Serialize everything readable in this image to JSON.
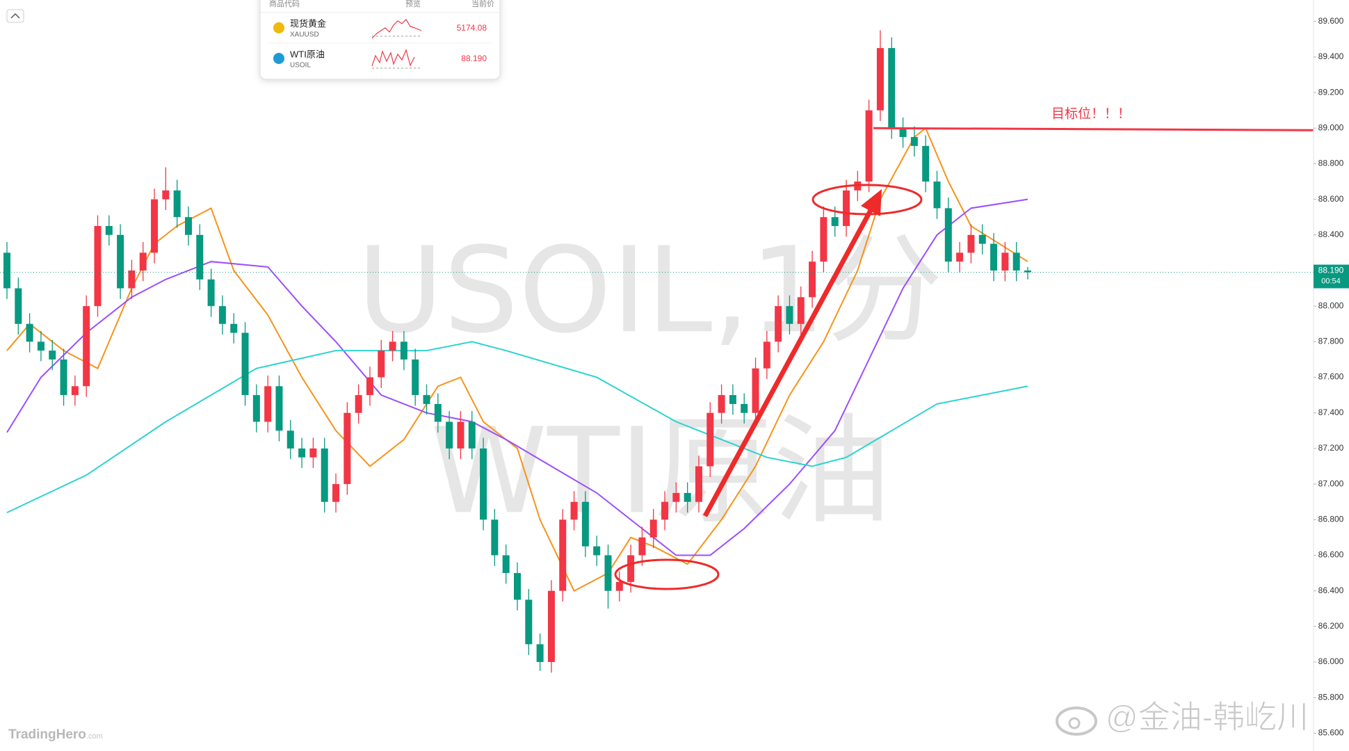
{
  "chart_data": {
    "type": "candlestick",
    "watermark": [
      "USOIL,1分",
      "WTI原油"
    ],
    "up_color": "#f23645",
    "down_color": "#089981",
    "open": [
      88.3,
      88.1,
      87.9,
      87.8,
      87.75,
      87.7,
      87.5,
      87.55,
      88.0,
      88.45,
      88.4,
      88.1,
      88.2,
      88.3,
      88.6,
      88.65,
      88.5,
      88.4,
      88.15,
      88.0,
      87.9,
      87.85,
      87.5,
      87.35,
      87.55,
      87.3,
      87.2,
      87.15,
      87.2,
      86.9,
      87.0,
      87.4,
      87.5,
      87.6,
      87.75,
      87.8,
      87.7,
      87.5,
      87.45,
      87.35,
      87.2,
      87.35,
      87.2,
      86.8,
      86.6,
      86.5,
      86.35,
      86.1,
      86.0,
      86.4,
      86.8,
      86.9,
      86.65,
      86.6,
      86.4,
      86.45,
      86.6,
      86.7,
      86.8,
      86.9,
      86.95,
      86.9,
      87.1,
      87.4,
      87.5,
      87.45,
      87.4,
      87.65,
      87.8,
      88.0,
      87.9,
      88.05,
      88.25,
      88.5,
      88.45,
      88.65,
      88.7,
      89.1,
      89.45,
      89.0,
      88.95,
      88.9,
      88.7,
      88.55,
      88.25,
      88.3,
      88.4,
      88.35,
      88.2,
      88.3,
      88.2
    ],
    "high": [
      88.36,
      88.16,
      87.96,
      87.86,
      87.81,
      87.76,
      87.61,
      88.06,
      88.51,
      88.51,
      88.46,
      88.26,
      88.36,
      88.66,
      88.78,
      88.71,
      88.56,
      88.46,
      88.21,
      88.06,
      87.96,
      87.91,
      87.56,
      87.61,
      87.61,
      87.36,
      87.26,
      87.26,
      87.26,
      87.06,
      87.46,
      87.56,
      87.66,
      87.81,
      87.86,
      87.86,
      87.76,
      87.56,
      87.51,
      87.41,
      87.41,
      87.41,
      87.26,
      86.86,
      86.66,
      86.56,
      86.41,
      86.16,
      86.46,
      86.86,
      86.96,
      86.96,
      86.71,
      86.66,
      86.51,
      86.66,
      86.76,
      86.86,
      86.96,
      87.01,
      87.01,
      87.16,
      87.46,
      87.56,
      87.56,
      87.51,
      87.71,
      87.86,
      88.06,
      88.06,
      88.11,
      88.31,
      88.56,
      88.56,
      88.71,
      88.76,
      89.16,
      89.55,
      89.51,
      89.06,
      89.01,
      88.96,
      88.76,
      88.61,
      88.36,
      88.46,
      88.46,
      88.41,
      88.36,
      88.36,
      88.22
    ],
    "low": [
      88.04,
      87.84,
      87.74,
      87.69,
      87.64,
      87.44,
      87.44,
      87.49,
      87.94,
      88.34,
      88.04,
      88.04,
      88.14,
      88.24,
      88.54,
      88.44,
      88.34,
      88.09,
      87.94,
      87.84,
      87.79,
      87.44,
      87.29,
      87.29,
      87.24,
      87.14,
      87.09,
      87.09,
      86.84,
      86.84,
      86.94,
      87.34,
      87.44,
      87.54,
      87.69,
      87.64,
      87.44,
      87.39,
      87.29,
      87.14,
      87.14,
      87.14,
      86.74,
      86.54,
      86.44,
      86.29,
      86.04,
      85.95,
      85.94,
      86.34,
      86.74,
      86.59,
      86.54,
      86.3,
      86.34,
      86.39,
      86.54,
      86.64,
      86.74,
      86.84,
      86.84,
      86.84,
      87.04,
      87.34,
      87.39,
      87.34,
      87.34,
      87.59,
      87.74,
      87.84,
      87.84,
      87.99,
      88.19,
      88.39,
      88.39,
      88.59,
      88.64,
      89.04,
      88.94,
      88.89,
      88.84,
      88.64,
      88.49,
      88.19,
      88.19,
      88.24,
      88.29,
      88.14,
      88.14,
      88.14,
      88.15
    ],
    "close": [
      88.1,
      87.9,
      87.8,
      87.75,
      87.7,
      87.5,
      87.55,
      88.0,
      88.45,
      88.4,
      88.1,
      88.2,
      88.3,
      88.6,
      88.65,
      88.5,
      88.4,
      88.15,
      88.0,
      87.9,
      87.85,
      87.5,
      87.35,
      87.55,
      87.3,
      87.2,
      87.15,
      87.2,
      86.9,
      87.0,
      87.4,
      87.5,
      87.6,
      87.75,
      87.8,
      87.7,
      87.5,
      87.45,
      87.35,
      87.2,
      87.35,
      87.2,
      86.8,
      86.6,
      86.5,
      86.35,
      86.1,
      86.0,
      86.4,
      86.8,
      86.9,
      86.65,
      86.6,
      86.4,
      86.45,
      86.6,
      86.7,
      86.8,
      86.9,
      86.95,
      86.9,
      87.1,
      87.4,
      87.5,
      87.45,
      87.4,
      87.65,
      87.8,
      88.0,
      87.9,
      88.05,
      88.25,
      88.5,
      88.45,
      88.65,
      88.7,
      89.1,
      89.45,
      89.0,
      88.95,
      88.9,
      88.7,
      88.55,
      88.25,
      88.3,
      88.4,
      88.35,
      88.2,
      88.3,
      88.2,
      88.19
    ],
    "lines": [
      {
        "color": "#f7931a",
        "x": [
          0,
          2,
          5,
          8,
          11,
          13,
          15,
          18,
          20,
          23,
          26,
          29,
          32,
          35,
          38,
          40,
          42,
          45,
          47,
          50,
          53,
          55,
          57,
          60,
          63,
          66,
          69,
          72,
          75,
          77,
          80,
          81,
          83,
          85,
          90
        ],
        "values": [
          87.75,
          87.9,
          87.75,
          87.65,
          88.1,
          88.35,
          88.45,
          88.55,
          88.2,
          87.95,
          87.6,
          87.3,
          87.1,
          87.25,
          87.55,
          87.6,
          87.35,
          87.2,
          86.8,
          86.4,
          86.5,
          86.7,
          86.65,
          86.55,
          86.8,
          87.1,
          87.5,
          87.8,
          88.2,
          88.6,
          88.95,
          89.0,
          88.7,
          88.45,
          88.25
        ]
      },
      {
        "color": "#9b4dff",
        "x": [
          0,
          3,
          7,
          11,
          14,
          18,
          23,
          26,
          29,
          33,
          37,
          41,
          44,
          48,
          52,
          56,
          59,
          62,
          65,
          69,
          73,
          76,
          79,
          82,
          85,
          90
        ],
        "values": [
          87.29,
          87.6,
          87.85,
          88.05,
          88.15,
          88.25,
          88.22,
          88.0,
          87.8,
          87.5,
          87.4,
          87.35,
          87.25,
          87.1,
          86.95,
          86.75,
          86.6,
          86.6,
          86.75,
          87.0,
          87.3,
          87.7,
          88.1,
          88.4,
          88.55,
          88.6
        ]
      },
      {
        "color": "#2ad4d0",
        "x": [
          0,
          7,
          14,
          22,
          29,
          37,
          41,
          44,
          52,
          59,
          67,
          71,
          74,
          78,
          82,
          90
        ],
        "values": [
          86.84,
          87.05,
          87.35,
          87.65,
          87.75,
          87.75,
          87.8,
          87.75,
          87.6,
          87.35,
          87.15,
          87.1,
          87.15,
          87.3,
          87.45,
          87.55
        ]
      }
    ],
    "ylim": [
      85.5,
      89.72
    ],
    "yticks": [
      {
        "value": 85.6,
        "label": "85.600"
      },
      {
        "value": 85.8,
        "label": "85.800"
      },
      {
        "value": 86.0,
        "label": "86.000"
      },
      {
        "value": 86.2,
        "label": "86.200"
      },
      {
        "value": 86.4,
        "label": "86.400"
      },
      {
        "value": 86.6,
        "label": "86.600"
      },
      {
        "value": 86.8,
        "label": "86.800"
      },
      {
        "value": 87.0,
        "label": "87.000"
      },
      {
        "value": 87.2,
        "label": "87.200"
      },
      {
        "value": 87.4,
        "label": "87.400"
      },
      {
        "value": 87.6,
        "label": "87.600"
      },
      {
        "value": 87.8,
        "label": "87.800"
      },
      {
        "value": 88.0,
        "label": "88.000"
      },
      {
        "value": 88.2,
        "label": "88.200"
      },
      {
        "value": 88.4,
        "label": "88.400"
      },
      {
        "value": 88.6,
        "label": "88.600"
      },
      {
        "value": 88.8,
        "label": "88.800"
      },
      {
        "value": 89.0,
        "label": "89.000"
      },
      {
        "value": 89.2,
        "label": "89.200"
      },
      {
        "value": 89.4,
        "label": "89.400"
      },
      {
        "value": 89.6,
        "label": "89.600"
      }
    ],
    "last_price": {
      "value": 88.19,
      "label": "88.190"
    },
    "countdown": "00:54",
    "target": {
      "value": 89.0,
      "label": "目标位！！！",
      "color": "#f23645"
    }
  },
  "watchlist": {
    "headers": [
      "商品代码",
      "预览",
      "当前价"
    ],
    "rows": [
      {
        "name": "现货黄金",
        "code": "XAUUSD",
        "price": "5174.08"
      },
      {
        "name": "WTI原油",
        "code": "USOIL",
        "price": "88.190"
      }
    ]
  },
  "branding": {
    "logo": "TradingHero",
    "logo_suffix": ".com",
    "weibo": "@金油-韩屹川"
  }
}
